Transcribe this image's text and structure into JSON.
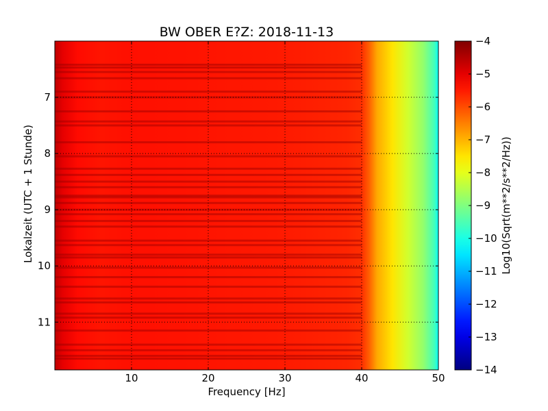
{
  "chart_data": {
    "type": "heatmap",
    "title": "BW OBER E?Z: 2018-11-13",
    "xlabel": "Frequency [Hz]",
    "ylabel": "Lokalzeit (UTC + 1 Stunde)",
    "xlim": [
      0,
      50
    ],
    "ylim": [
      11.85,
      6.0
    ],
    "x_ticks": [
      10,
      20,
      30,
      40,
      50
    ],
    "x_tick_labels": [
      "10",
      "20",
      "30",
      "40",
      "50"
    ],
    "y_ticks": [
      7,
      8,
      9,
      10,
      11
    ],
    "y_tick_labels": [
      "7",
      "8",
      "9",
      "10",
      "11"
    ],
    "grid": true,
    "colormap": "jet",
    "colorbar": {
      "label": "Log10(Sqrt(m**2/s**2/Hz))",
      "range": [
        -14,
        -4
      ],
      "ticks": [
        -4,
        -5,
        -6,
        -7,
        -8,
        -9,
        -10,
        -11,
        -12,
        -13,
        -14
      ],
      "tick_labels": [
        "−4",
        "−5",
        "−6",
        "−7",
        "−8",
        "−9",
        "−10",
        "−11",
        "−12",
        "−13",
        "−14"
      ]
    },
    "frequency_profile": {
      "frequency_hz": [
        0,
        1,
        3,
        6,
        10,
        20,
        30,
        38,
        40,
        41,
        42,
        44,
        46,
        48,
        49.5,
        50
      ],
      "log_amplitude": [
        -4.6,
        -5.0,
        -5.35,
        -5.45,
        -5.4,
        -5.45,
        -5.5,
        -5.6,
        -5.7,
        -6.2,
        -6.9,
        -7.5,
        -8.2,
        -8.8,
        -9.6,
        -10.2
      ]
    },
    "dark_time_bands_hours": [
      6.42,
      6.47,
      6.55,
      6.66,
      6.9,
      7.0,
      7.25,
      7.43,
      7.5,
      7.8,
      8.05,
      8.27,
      8.38,
      8.5,
      8.6,
      8.75,
      8.78,
      8.88,
      9.0,
      9.08,
      9.2,
      9.3,
      9.55,
      9.63,
      9.8,
      9.85,
      10.03,
      10.2,
      10.37,
      10.58,
      10.65,
      10.85,
      10.92,
      11.15,
      11.4,
      11.5,
      11.6,
      11.65
    ]
  }
}
